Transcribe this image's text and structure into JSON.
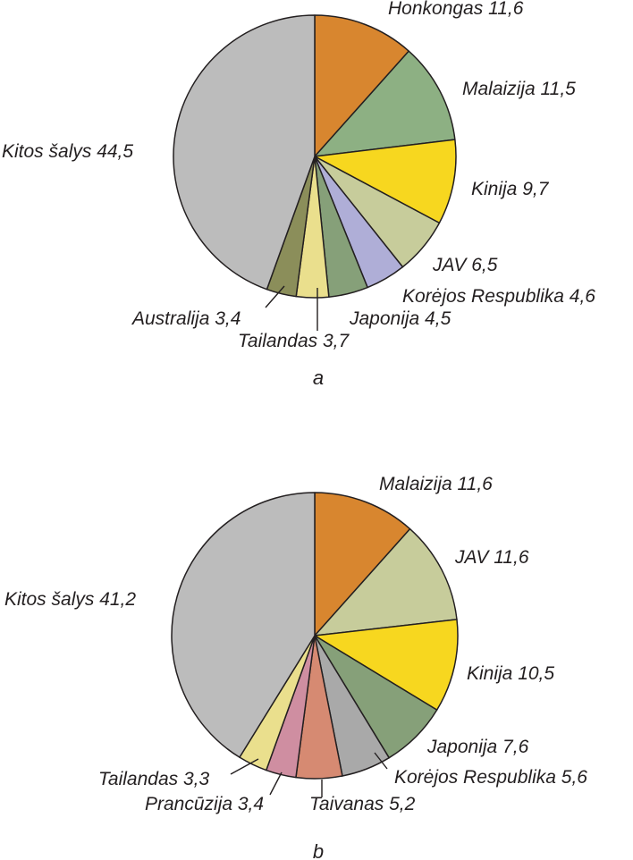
{
  "chart_data": [
    {
      "type": "pie",
      "caption": "a",
      "slices": [
        {
          "name": "Honkongas",
          "value": 11.6,
          "label": "Honkongas 11,6",
          "color": "#d8862f"
        },
        {
          "name": "Malaizija",
          "value": 11.5,
          "label": "Malaizija 11,5",
          "color": "#8db083"
        },
        {
          "name": "Kinija",
          "value": 9.7,
          "label": "Kinija 9,7",
          "color": "#f7d71f"
        },
        {
          "name": "JAV",
          "value": 6.5,
          "label": "JAV 6,5",
          "color": "#c7cc9b"
        },
        {
          "name": "Korėjos Respublika",
          "value": 4.6,
          "label": "Korėjos Respublika 4,6",
          "color": "#afaed7"
        },
        {
          "name": "Japonija",
          "value": 4.5,
          "label": "Japonija 4,5",
          "color": "#86a079"
        },
        {
          "name": "Tailandas",
          "value": 3.7,
          "label": "Tailandas 3,7",
          "color": "#eadf8d"
        },
        {
          "name": "Australija",
          "value": 3.4,
          "label": "Australija 3,4",
          "color": "#8b8e5a"
        },
        {
          "name": "Kitos šalys",
          "value": 44.5,
          "label": "Kitos šalys 44,5",
          "color": "#bcbcbc"
        }
      ]
    },
    {
      "type": "pie",
      "caption": "b",
      "slices": [
        {
          "name": "Malaizija",
          "value": 11.6,
          "label": "Malaizija 11,6",
          "color": "#d8862f"
        },
        {
          "name": "JAV",
          "value": 11.6,
          "label": "JAV 11,6",
          "color": "#c7cc9b"
        },
        {
          "name": "Kinija",
          "value": 10.5,
          "label": "Kinija 10,5",
          "color": "#f7d71f"
        },
        {
          "name": "Japonija",
          "value": 7.6,
          "label": "Japonija 7,6",
          "color": "#86a079"
        },
        {
          "name": "Korėjos Respublika",
          "value": 5.6,
          "label": "Korėjos Respublika 5,6",
          "color": "#a9a9a9"
        },
        {
          "name": "Taivanas",
          "value": 5.2,
          "label": "Taivanas 5,2",
          "color": "#d68a72"
        },
        {
          "name": "Prancūzija",
          "value": 3.4,
          "label": "Prancūzija 3,4",
          "color": "#cf8ea1"
        },
        {
          "name": "Tailandas",
          "value": 3.3,
          "label": "Tailandas 3,3",
          "color": "#eadf8d"
        },
        {
          "name": "Kitos šalys",
          "value": 41.2,
          "label": "Kitos šalys 41,2",
          "color": "#bcbcbc"
        }
      ]
    }
  ]
}
